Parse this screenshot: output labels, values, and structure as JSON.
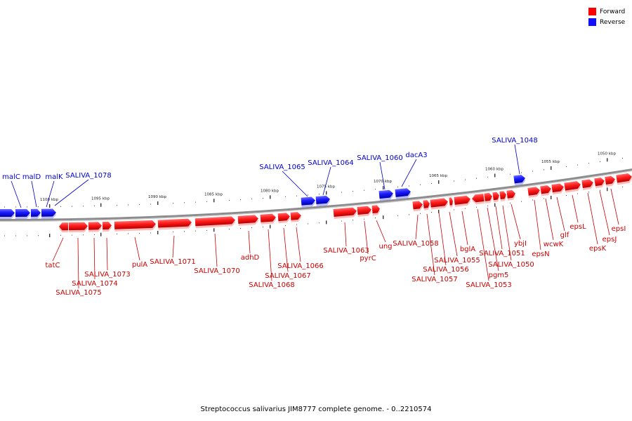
{
  "legend": {
    "forward": {
      "label": "Forward",
      "color": "#ff0000"
    },
    "reverse": {
      "label": "Reverse",
      "color": "#1010ff"
    }
  },
  "caption": "Streptococcus salivarius JIM8777 complete genome. - 0..2210574",
  "kbp_labels": [
    "1100 kbp",
    "1095 kbp",
    "1090 kbp",
    "1085 kbp",
    "1080 kbp",
    "1075 kbp",
    "1070 kbp",
    "1065 kbp",
    "1060 kbp",
    "1055 kbp",
    "1050 kbp"
  ],
  "reverse_genes": [
    "malC",
    "malD",
    "malK",
    "SALIVA_1078",
    "SALIVA_1065",
    "SALIVA_1064",
    "SALIVA_1060",
    "dacA3",
    "SALIVA_1048"
  ],
  "forward_genes": [
    "tatC",
    "SALIVA_1075",
    "SALIVA_1074",
    "SALIVA_1073",
    "pulA",
    "SALIVA_1071",
    "SALIVA_1070",
    "adhD",
    "SALIVA_1068",
    "SALIVA_1067",
    "SALIVA_1066",
    "SALIVA_1063",
    "pyrC",
    "ung",
    "SALIVA_1058",
    "SALIVA_1057",
    "SALIVA_1056",
    "SALIVA_1055",
    "bglA",
    "SALIVA_1053",
    "pgm5",
    "SALIVA_1051",
    "SALIVA_1050",
    "ybjI",
    "epsN",
    "wcwK",
    "glf",
    "epsL",
    "epsK",
    "epsJ",
    "epsI"
  ]
}
